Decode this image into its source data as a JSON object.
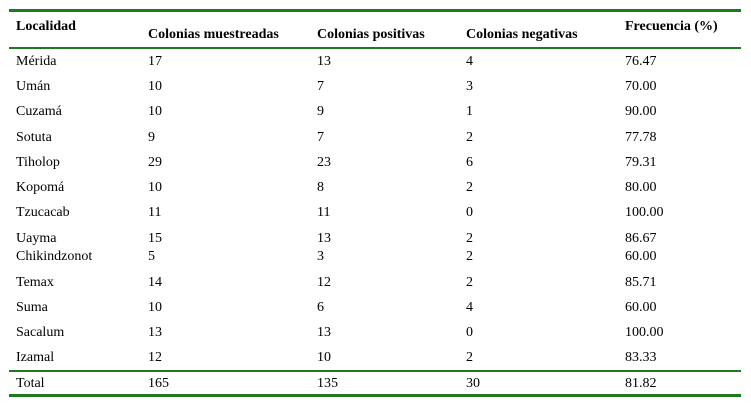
{
  "headers": [
    "Localidad",
    "Colonias muestreadas",
    "Colonias positivas",
    "Colonias negativas",
    "Frecuencia (%)"
  ],
  "rows": [
    [
      "Mérida",
      "17",
      "13",
      "4",
      "76.47"
    ],
    [
      "Umán",
      "10",
      "7",
      "3",
      "70.00"
    ],
    [
      "Cuzamá",
      "10",
      "9",
      "1",
      "90.00"
    ],
    [
      "Sotuta",
      "9",
      "7",
      "2",
      "77.78"
    ],
    [
      "Tiholop",
      "29",
      "23",
      "6",
      "79.31"
    ],
    [
      "Kopomá",
      "10",
      "8",
      "2",
      "80.00"
    ],
    [
      "Tzucacab",
      "11",
      "11",
      "0",
      "100.00"
    ],
    [
      "Uayma",
      "15",
      "13",
      "2",
      "86.67"
    ],
    [
      "Chikindzonot",
      "5",
      "3",
      "2",
      "60.00"
    ],
    [
      "Temax",
      "14",
      "12",
      "2",
      "85.71"
    ],
    [
      "Suma",
      "10",
      "6",
      "4",
      "60.00"
    ],
    [
      "Sacalum",
      "13",
      "13",
      "0",
      "100.00"
    ],
    [
      "Izamal",
      "12",
      "10",
      "2",
      "83.33"
    ]
  ],
  "total": [
    "Total",
    "165",
    "135",
    "30",
    "81.82"
  ],
  "colors": {
    "rule": "#1f7a1f"
  }
}
